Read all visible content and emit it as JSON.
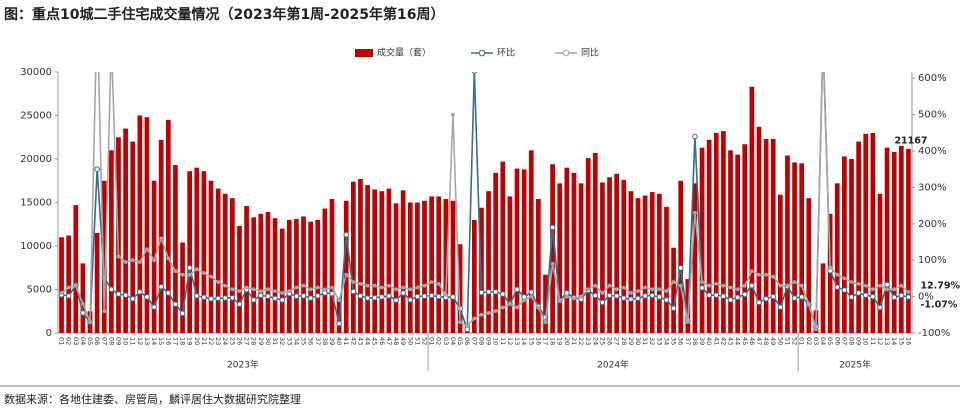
{
  "chart_data": {
    "type": "bar_line",
    "title": "图：重点10城二手住宅成交量情况（2023年第1周-2025年第16周）",
    "source": "数据来源：各地住建委、房管局，麟评居住大数据研究院整理",
    "groups": [
      "2023年",
      "2024年",
      "2025年"
    ],
    "categories": [
      "01",
      "02",
      "03",
      "04",
      "05",
      "06",
      "07",
      "08",
      "09",
      "10",
      "11",
      "12",
      "13",
      "14",
      "15",
      "16",
      "17",
      "18",
      "19",
      "20",
      "21",
      "22",
      "23",
      "24",
      "25",
      "26",
      "27",
      "28",
      "29",
      "30",
      "31",
      "32",
      "33",
      "34",
      "35",
      "36",
      "37",
      "38",
      "39",
      "40",
      "41",
      "42",
      "43",
      "44",
      "45",
      "46",
      "47",
      "48",
      "49",
      "50",
      "51",
      "52",
      "01",
      "02",
      "03",
      "04",
      "05",
      "06",
      "07",
      "08",
      "09",
      "10",
      "11",
      "12",
      "13",
      "14",
      "15",
      "16",
      "17",
      "18",
      "19",
      "20",
      "21",
      "22",
      "23",
      "24",
      "25",
      "26",
      "27",
      "28",
      "29",
      "30",
      "31",
      "32",
      "33",
      "34",
      "35",
      "36",
      "37",
      "38",
      "39",
      "40",
      "41",
      "42",
      "43",
      "44",
      "45",
      "46",
      "47",
      "48",
      "49",
      "50",
      "51",
      "52",
      "01",
      "02",
      "03",
      "04",
      "05",
      "06",
      "07",
      "08",
      "09",
      "10",
      "11",
      "12",
      "13",
      "14",
      "15",
      "16"
    ],
    "series": [
      {
        "name": "成交量（套）",
        "kind": "bar",
        "color": "#c00000",
        "values": [
          11000,
          11200,
          14700,
          8000,
          2500,
          11500,
          17500,
          21000,
          22500,
          23500,
          22000,
          25000,
          24800,
          17500,
          22200,
          24500,
          19300,
          10400,
          18600,
          19000,
          18600,
          17500,
          16600,
          16000,
          15500,
          12300,
          14600,
          13300,
          13700,
          13900,
          13200,
          12000,
          13000,
          13100,
          13400,
          12800,
          13000,
          14300,
          15400,
          4000,
          15200,
          17400,
          17700,
          17000,
          16500,
          16300,
          16600,
          14900,
          16400,
          15000,
          15000,
          15200,
          15700,
          15700,
          15400,
          15200,
          10200,
          1000,
          13000,
          14400,
          16300,
          18400,
          19700,
          15700,
          18900,
          18800,
          21000,
          15400,
          6700,
          19400,
          17200,
          19000,
          18400,
          17200,
          20100,
          20700,
          17300,
          17900,
          18300,
          17600,
          16300,
          15500,
          15800,
          16200,
          16000,
          14500,
          9800,
          17500,
          6200,
          17200,
          21300,
          22200,
          23000,
          23200,
          21000,
          20500,
          21700,
          28300,
          23700,
          22300,
          22300,
          15900,
          20400,
          19600,
          19500,
          15500,
          2600,
          8000,
          13700,
          17200,
          20300,
          20000,
          22000,
          22900,
          23000,
          16000,
          21300,
          20800,
          21500,
          21167
        ]
      },
      {
        "name": "环比",
        "kind": "line",
        "axis": "y2",
        "color": "#31708f",
        "marker": true,
        "values": [
          5,
          2,
          31,
          -45,
          -70,
          350,
          52,
          20,
          7,
          4,
          -6,
          13,
          -1,
          -29,
          27,
          10,
          -21,
          -46,
          79,
          2,
          -2,
          -6,
          -5,
          -4,
          -3,
          -21,
          19,
          -9,
          3,
          1,
          -5,
          -9,
          8,
          1,
          2,
          -4,
          2,
          10,
          8,
          -74,
          170,
          14,
          2,
          -4,
          -3,
          -1,
          2,
          -10,
          10,
          -9,
          0,
          1,
          3,
          0,
          -2,
          -1,
          -33,
          -90,
          620,
          11,
          13,
          13,
          7,
          -20,
          20,
          -1,
          12,
          -27,
          -57,
          190,
          -11,
          10,
          -3,
          -7,
          17,
          3,
          -16,
          3,
          2,
          -4,
          -7,
          -5,
          2,
          3,
          -1,
          -9,
          -32,
          79,
          -65,
          440,
          24,
          4,
          4,
          1,
          -9,
          -2,
          6,
          30,
          -16,
          -6,
          0,
          -29,
          28,
          -4,
          -1,
          -21,
          -83,
          700,
          71,
          26,
          18,
          -1,
          10,
          4,
          0,
          -30,
          33,
          -2,
          3,
          -1.07
        ],
        "value_labels": [
          null,
          null,
          null,
          null,
          null,
          null,
          null,
          null,
          null,
          null,
          null,
          null,
          null,
          null,
          null,
          null,
          null,
          null,
          null,
          null,
          null,
          null,
          null,
          null,
          null,
          null,
          null,
          null,
          null,
          null,
          null,
          null,
          null,
          null,
          null,
          null,
          null,
          null,
          null,
          null,
          null,
          null,
          null,
          null,
          null,
          null,
          null,
          null,
          null,
          null,
          null,
          null,
          null,
          null,
          null,
          null,
          null,
          null,
          null,
          null,
          null,
          null,
          null,
          null,
          null,
          null,
          null,
          null,
          null,
          null,
          null,
          null,
          null,
          null,
          null,
          null,
          null,
          null,
          null,
          null,
          null,
          null,
          null,
          null,
          null,
          null,
          null,
          null,
          null,
          null,
          null,
          null,
          null,
          null,
          null,
          null,
          null,
          null,
          null,
          null,
          null,
          null,
          null,
          null,
          null,
          null,
          null,
          null,
          null,
          null,
          null,
          null,
          null,
          null,
          null,
          null,
          null,
          null,
          null,
          "-1.07%"
        ]
      },
      {
        "name": "同比",
        "kind": "line",
        "axis": "y2",
        "color": "#a6a6a6",
        "marker": false,
        "values": [
          10,
          25,
          30,
          -20,
          -70,
          800,
          -40,
          700,
          110,
          95,
          100,
          95,
          130,
          100,
          160,
          105,
          70,
          60,
          60,
          75,
          65,
          55,
          40,
          30,
          20,
          15,
          25,
          20,
          15,
          20,
          15,
          10,
          15,
          25,
          30,
          20,
          25,
          20,
          25,
          -10,
          60,
          40,
          35,
          30,
          30,
          25,
          30,
          20,
          25,
          20,
          25,
          30,
          40,
          35,
          5,
          500,
          -70,
          -80,
          -60,
          -50,
          -45,
          -40,
          -30,
          -20,
          -30,
          -10,
          0,
          -30,
          -70,
          90,
          -10,
          0,
          -5,
          0,
          20,
          30,
          10,
          30,
          20,
          25,
          10,
          15,
          25,
          20,
          20,
          15,
          40,
          30,
          -70,
          230,
          40,
          30,
          35,
          30,
          25,
          20,
          30,
          70,
          60,
          60,
          55,
          30,
          30,
          40,
          30,
          -20,
          -90,
          700,
          80,
          60,
          50,
          40,
          35,
          30,
          20,
          30,
          20,
          20,
          30,
          12.79
        ],
        "value_labels": [
          null,
          null,
          null,
          null,
          null,
          null,
          null,
          null,
          null,
          null,
          null,
          null,
          null,
          null,
          null,
          null,
          null,
          null,
          null,
          null,
          null,
          null,
          null,
          null,
          null,
          null,
          null,
          null,
          null,
          null,
          null,
          null,
          null,
          null,
          null,
          null,
          null,
          null,
          null,
          null,
          null,
          null,
          null,
          null,
          null,
          null,
          null,
          null,
          null,
          null,
          null,
          null,
          null,
          null,
          null,
          null,
          null,
          null,
          null,
          null,
          null,
          null,
          null,
          null,
          null,
          null,
          null,
          null,
          null,
          null,
          null,
          null,
          null,
          null,
          null,
          null,
          null,
          null,
          null,
          null,
          null,
          null,
          null,
          null,
          null,
          null,
          null,
          null,
          null,
          null,
          null,
          null,
          null,
          null,
          null,
          null,
          null,
          null,
          null,
          null,
          null,
          null,
          null,
          null,
          null,
          null,
          null,
          null,
          null,
          null,
          null,
          null,
          null,
          null,
          null,
          null,
          null,
          null,
          null,
          "12.79%"
        ]
      }
    ],
    "ylim": [
      0,
      30000
    ],
    "yticks": [
      0,
      5000,
      10000,
      15000,
      20000,
      25000,
      30000
    ],
    "y2lim": [
      -100,
      617
    ],
    "y2ticks": [
      {
        "value": -100,
        "label": "-100%"
      },
      {
        "value": 0,
        "label": "0%"
      },
      {
        "value": 100,
        "label": "100%"
      },
      {
        "value": 200,
        "label": "200%"
      },
      {
        "value": 300,
        "label": "300%"
      },
      {
        "value": 400,
        "label": "400%"
      },
      {
        "value": 500,
        "label": "500%"
      },
      {
        "value": 600,
        "label": "600%"
      }
    ],
    "legend": "top"
  }
}
